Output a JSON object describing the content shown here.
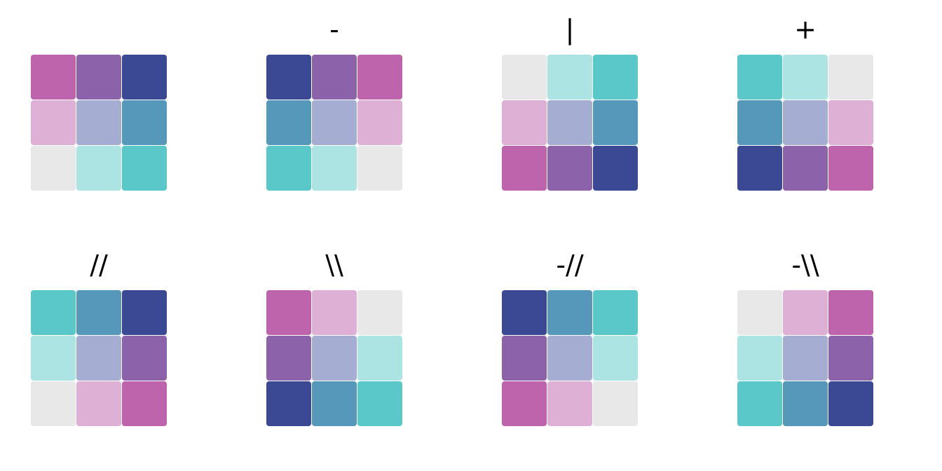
{
  "palette": {
    "A": "#be64ac",
    "B": "#8c62aa",
    "C": "#3b4994",
    "D": "#dfb0d6",
    "E": "#a5add3",
    "F": "#5698b9",
    "G": "#e8e8e8",
    "H": "#ace4e4",
    "I": "#5ac8c8"
  },
  "panels": [
    {
      "label": "",
      "cells": [
        "A",
        "B",
        "C",
        "D",
        "E",
        "F",
        "G",
        "H",
        "I"
      ]
    },
    {
      "label": "-",
      "cells": [
        "C",
        "B",
        "A",
        "F",
        "E",
        "D",
        "I",
        "H",
        "G"
      ]
    },
    {
      "label": "|",
      "cells": [
        "G",
        "H",
        "I",
        "D",
        "E",
        "F",
        "A",
        "B",
        "C"
      ]
    },
    {
      "label": "+",
      "cells": [
        "I",
        "H",
        "G",
        "F",
        "E",
        "D",
        "C",
        "B",
        "A"
      ]
    },
    {
      "label": "//",
      "cells": [
        "I",
        "F",
        "C",
        "H",
        "E",
        "B",
        "G",
        "D",
        "A"
      ]
    },
    {
      "label": "\\\\",
      "cells": [
        "A",
        "D",
        "G",
        "B",
        "E",
        "H",
        "C",
        "F",
        "I"
      ]
    },
    {
      "label": "-//",
      "cells": [
        "C",
        "F",
        "I",
        "B",
        "E",
        "H",
        "A",
        "D",
        "G"
      ]
    },
    {
      "label": "-\\\\",
      "cells": [
        "G",
        "D",
        "A",
        "H",
        "E",
        "B",
        "I",
        "F",
        "C"
      ]
    }
  ]
}
